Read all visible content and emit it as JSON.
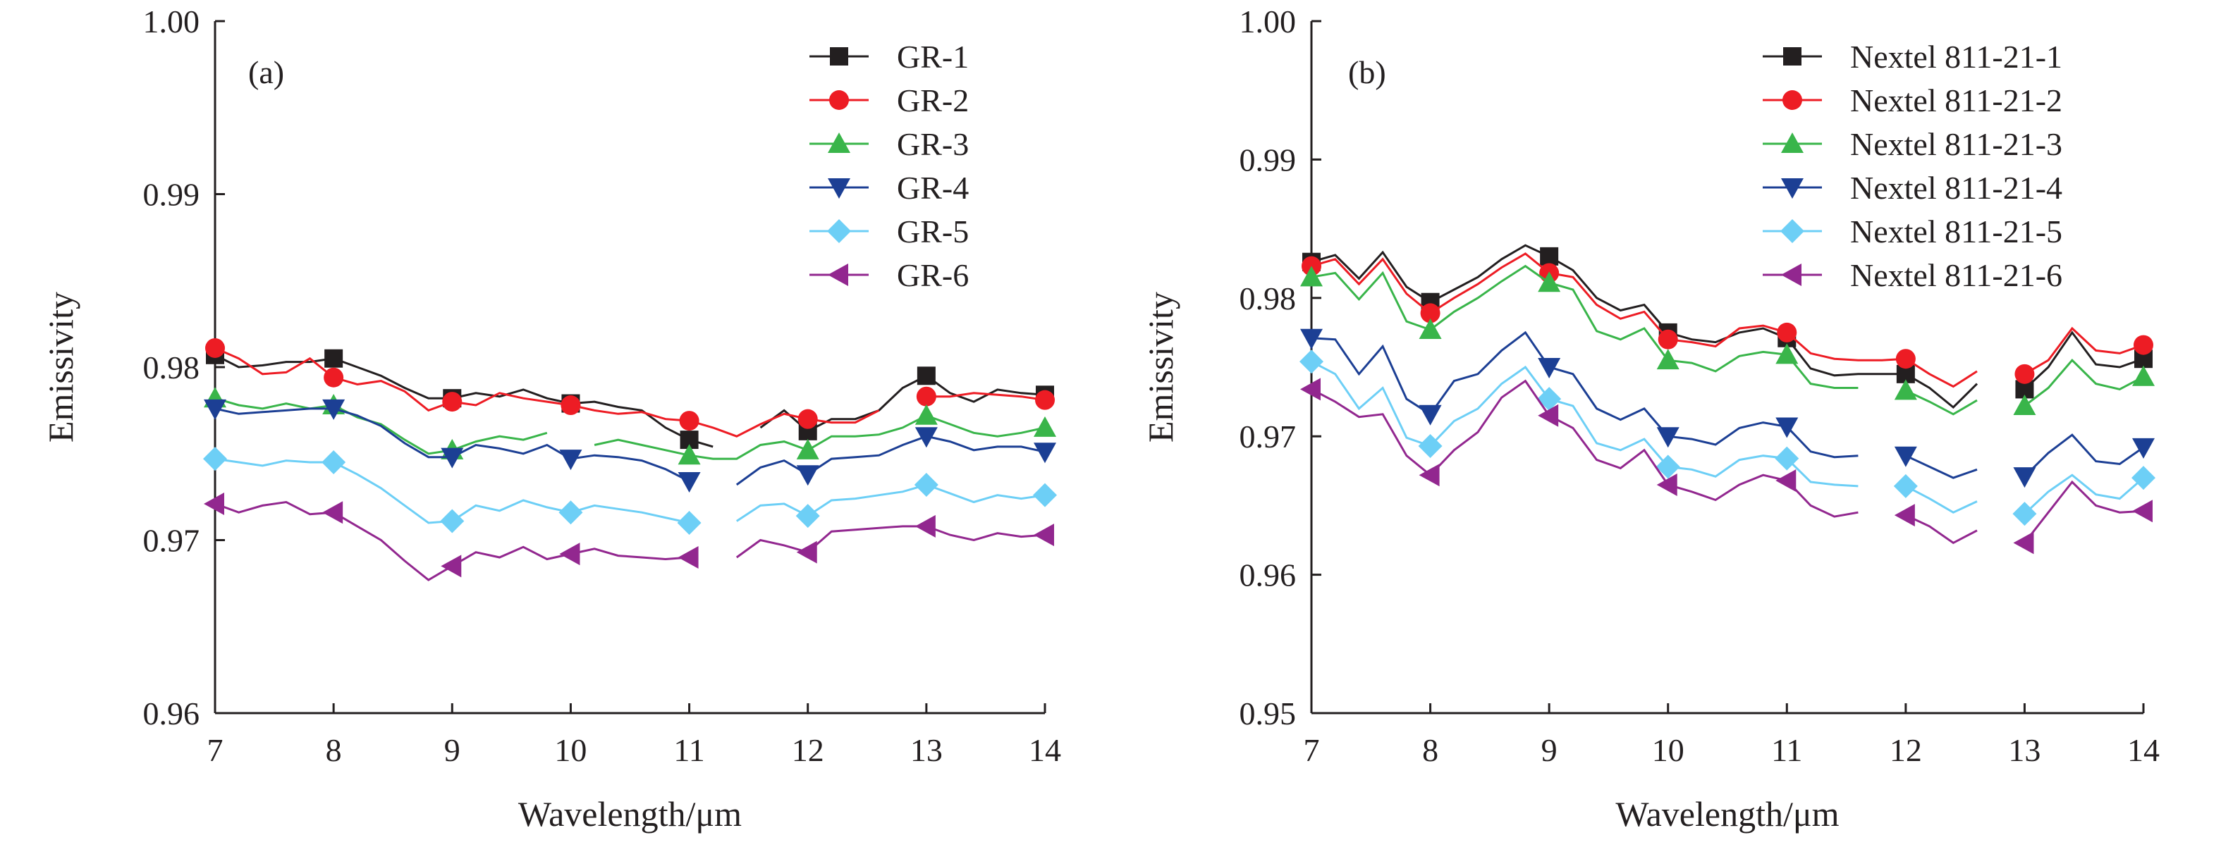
{
  "chart_data": [
    {
      "type": "line",
      "panel_label": "(a)",
      "xlabel": "Wavelength/μm",
      "ylabel": "Emissivity",
      "xlim": [
        7,
        14
      ],
      "ylim": [
        0.96,
        1.0
      ],
      "xticks": [
        "7",
        "8",
        "9",
        "10",
        "11",
        "12",
        "13",
        "14"
      ],
      "yticks": [
        "0.96",
        "0.97",
        "0.98",
        "0.99",
        "1.00"
      ],
      "legend": "top-right",
      "grid": false,
      "x": [
        7.0,
        7.2,
        7.4,
        7.6,
        7.8,
        8.0,
        8.2,
        8.4,
        8.6,
        8.8,
        9.0,
        9.2,
        9.4,
        9.6,
        9.8,
        10.0,
        10.2,
        10.4,
        10.6,
        10.8,
        11.0,
        11.2,
        11.4,
        11.6,
        11.8,
        12.0,
        12.2,
        12.4,
        12.6,
        12.8,
        13.0,
        13.2,
        13.4,
        13.6,
        13.8,
        14.0
      ],
      "marker_x": [
        7,
        8,
        9,
        10,
        11,
        12,
        13,
        14
      ],
      "series": [
        {
          "name": "GR-1",
          "color": "#231f20",
          "marker": "square",
          "values": [
            0.9807,
            0.98,
            0.9801,
            0.9803,
            0.9803,
            0.9805,
            0.98,
            0.9795,
            0.9788,
            0.9782,
            0.9782,
            0.9785,
            0.9783,
            0.9787,
            0.9782,
            0.9779,
            0.978,
            0.9777,
            0.9775,
            0.9765,
            0.9758,
            0.9754,
            null,
            0.9765,
            0.9775,
            0.9763,
            0.977,
            0.977,
            0.9775,
            0.9788,
            0.9795,
            0.9785,
            0.978,
            0.9787,
            0.9785,
            0.9784
          ]
        },
        {
          "name": "GR-2",
          "color": "#ed1c24",
          "marker": "circle",
          "values": [
            0.9811,
            0.9805,
            0.9796,
            0.9797,
            0.9805,
            0.9794,
            0.979,
            0.9792,
            0.9786,
            0.9775,
            0.978,
            0.9778,
            0.9785,
            0.9782,
            0.978,
            0.9778,
            0.9775,
            0.9773,
            0.9774,
            0.977,
            0.9769,
            0.9765,
            0.976,
            0.9767,
            0.9773,
            0.977,
            0.9768,
            0.9768,
            0.9775,
            null,
            0.9783,
            0.9783,
            0.9785,
            0.9784,
            0.9783,
            0.9781
          ]
        },
        {
          "name": "GR-3",
          "color": "#39b54a",
          "marker": "triangle-up",
          "values": [
            0.9782,
            0.9778,
            0.9776,
            0.9779,
            0.9776,
            0.9778,
            0.9771,
            0.9767,
            0.9758,
            0.975,
            0.9752,
            0.9757,
            0.976,
            0.9758,
            0.9762,
            null,
            0.9755,
            0.9758,
            0.9755,
            0.9752,
            0.9749,
            0.9747,
            0.9747,
            0.9755,
            0.9757,
            0.9752,
            0.976,
            0.976,
            0.9761,
            0.9765,
            0.9772,
            0.9767,
            0.9762,
            0.976,
            0.9762,
            0.9765
          ]
        },
        {
          "name": "GR-4",
          "color": "#1c3f94",
          "marker": "triangle-down",
          "values": [
            0.9776,
            0.9773,
            0.9774,
            0.9775,
            0.9776,
            0.9776,
            0.9772,
            0.9766,
            0.9756,
            0.9748,
            0.9748,
            0.9755,
            0.9753,
            0.975,
            0.9755,
            0.9747,
            0.9749,
            0.9748,
            0.9746,
            0.9741,
            0.9734,
            null,
            0.9732,
            0.9742,
            0.9746,
            0.9738,
            0.9747,
            0.9748,
            0.9749,
            0.9755,
            0.976,
            0.9757,
            0.9752,
            0.9754,
            0.9754,
            0.9751
          ]
        },
        {
          "name": "GR-5",
          "color": "#6dcff6",
          "marker": "diamond",
          "values": [
            0.9747,
            0.9745,
            0.9743,
            0.9746,
            0.9745,
            0.9745,
            0.9738,
            0.973,
            0.972,
            0.971,
            0.9711,
            0.972,
            0.9717,
            0.9723,
            0.9719,
            0.9716,
            0.972,
            0.9718,
            0.9716,
            0.9713,
            0.971,
            null,
            0.9711,
            0.972,
            0.9721,
            0.9714,
            0.9723,
            0.9724,
            0.9726,
            0.9728,
            0.9732,
            0.9727,
            0.9722,
            0.9726,
            0.9724,
            0.9726
          ]
        },
        {
          "name": "GR-6",
          "color": "#92278f",
          "marker": "triangle-left",
          "values": [
            0.9721,
            0.9716,
            0.972,
            0.9722,
            0.9715,
            0.9716,
            0.9708,
            0.97,
            0.9688,
            0.9677,
            0.9685,
            0.9693,
            0.969,
            0.9696,
            0.9689,
            0.9692,
            0.9695,
            0.9691,
            0.969,
            0.9689,
            0.969,
            null,
            0.969,
            0.97,
            0.9697,
            0.9693,
            0.9705,
            0.9706,
            0.9707,
            0.9708,
            0.9708,
            0.9703,
            0.97,
            0.9704,
            0.9702,
            0.9703
          ]
        }
      ]
    },
    {
      "type": "line",
      "panel_label": "(b)",
      "xlabel": "Wavelength/μm",
      "ylabel": "Emissivity",
      "xlim": [
        7,
        14
      ],
      "ylim": [
        0.95,
        1.0
      ],
      "xticks": [
        "7",
        "8",
        "9",
        "10",
        "11",
        "12",
        "13",
        "14"
      ],
      "yticks": [
        "0.95",
        "0.96",
        "0.97",
        "0.98",
        "0.99",
        "1.00"
      ],
      "legend": "top-right",
      "grid": false,
      "x": [
        7.0,
        7.2,
        7.4,
        7.6,
        7.8,
        8.0,
        8.2,
        8.4,
        8.6,
        8.8,
        9.0,
        9.2,
        9.4,
        9.6,
        9.8,
        10.0,
        10.2,
        10.4,
        10.6,
        10.8,
        11.0,
        11.2,
        11.4,
        11.6,
        11.8,
        12.0,
        12.2,
        12.4,
        12.6,
        12.8,
        13.0,
        13.2,
        13.4,
        13.6,
        13.8,
        14.0
      ],
      "marker_x": [
        7,
        8,
        9,
        10,
        11,
        12,
        13,
        14
      ],
      "series": [
        {
          "name": "Nextel 811-21-1",
          "color": "#231f20",
          "marker": "square",
          "values": [
            0.9826,
            0.9831,
            0.9814,
            0.9833,
            0.9808,
            0.9797,
            0.9806,
            0.9815,
            0.9828,
            0.9838,
            0.983,
            0.982,
            0.98,
            0.9791,
            0.9795,
            0.9775,
            0.977,
            0.9768,
            0.9775,
            0.9778,
            0.9771,
            0.9749,
            0.9744,
            0.9745,
            0.9745,
            0.9745,
            0.9735,
            0.9721,
            0.9738,
            null,
            0.9734,
            0.975,
            0.9775,
            0.9752,
            0.975,
            0.9756
          ]
        },
        {
          "name": "Nextel 811-21-2",
          "color": "#ed1c24",
          "marker": "circle",
          "values": [
            0.9823,
            0.9828,
            0.981,
            0.9828,
            0.9803,
            0.9789,
            0.98,
            0.981,
            0.9822,
            0.9832,
            0.9818,
            0.9815,
            0.9795,
            0.9785,
            0.979,
            0.977,
            0.9768,
            0.9765,
            0.9778,
            0.978,
            0.9775,
            0.976,
            0.9756,
            0.9755,
            0.9755,
            0.9756,
            0.9745,
            0.9736,
            0.9747,
            null,
            0.9745,
            0.9755,
            0.9778,
            0.9762,
            0.976,
            0.9766
          ]
        },
        {
          "name": "Nextel 811-21-3",
          "color": "#39b54a",
          "marker": "triangle-up",
          "values": [
            0.9815,
            0.9818,
            0.9799,
            0.9818,
            0.9783,
            0.9777,
            0.979,
            0.98,
            0.9812,
            0.9823,
            0.9811,
            0.9806,
            0.9776,
            0.977,
            0.9778,
            0.9755,
            0.9753,
            0.9747,
            0.9758,
            0.9761,
            0.9759,
            0.9738,
            0.9735,
            0.9735,
            null,
            0.9733,
            0.9725,
            0.9716,
            0.9726,
            null,
            0.9722,
            0.9735,
            0.9755,
            0.9738,
            0.9734,
            0.9743
          ]
        },
        {
          "name": "Nextel 811-21-4",
          "color": "#1c3f94",
          "marker": "triangle-down",
          "values": [
            0.9771,
            0.977,
            0.9745,
            0.9765,
            0.9727,
            0.9716,
            0.974,
            0.9745,
            0.9762,
            0.9775,
            0.975,
            0.9745,
            0.972,
            0.9712,
            0.972,
            0.97,
            0.9698,
            0.9694,
            0.9706,
            0.971,
            0.9707,
            0.9689,
            0.9685,
            0.9686,
            null,
            0.9686,
            0.9678,
            0.967,
            0.9676,
            null,
            0.9671,
            0.9688,
            0.9701,
            0.9682,
            0.968,
            0.9692
          ]
        },
        {
          "name": "Nextel 811-21-5",
          "color": "#6dcff6",
          "marker": "diamond",
          "values": [
            0.9754,
            0.9745,
            0.972,
            0.9735,
            0.9699,
            0.9693,
            0.9711,
            0.972,
            0.9738,
            0.975,
            0.9727,
            0.9722,
            0.9695,
            0.969,
            0.9698,
            0.9678,
            0.9676,
            0.9671,
            0.9683,
            0.9686,
            0.9684,
            0.9667,
            0.9665,
            0.9664,
            null,
            0.9664,
            0.9655,
            0.9645,
            0.9653,
            null,
            0.9644,
            0.966,
            0.9672,
            0.9658,
            0.9655,
            0.967
          ]
        },
        {
          "name": "Nextel 811-21-6",
          "color": "#92278f",
          "marker": "triangle-left",
          "values": [
            0.9734,
            0.9725,
            0.9714,
            0.9716,
            0.9686,
            0.9672,
            0.969,
            0.9703,
            0.9728,
            0.974,
            0.9715,
            0.9706,
            0.9683,
            0.9677,
            0.969,
            0.9665,
            0.966,
            0.9654,
            0.9665,
            0.9672,
            0.9668,
            0.965,
            0.9642,
            0.9645,
            null,
            0.9643,
            0.9635,
            0.9623,
            0.9632,
            null,
            0.9623,
            0.9645,
            0.9667,
            0.965,
            0.9645,
            0.9646
          ]
        }
      ]
    }
  ]
}
